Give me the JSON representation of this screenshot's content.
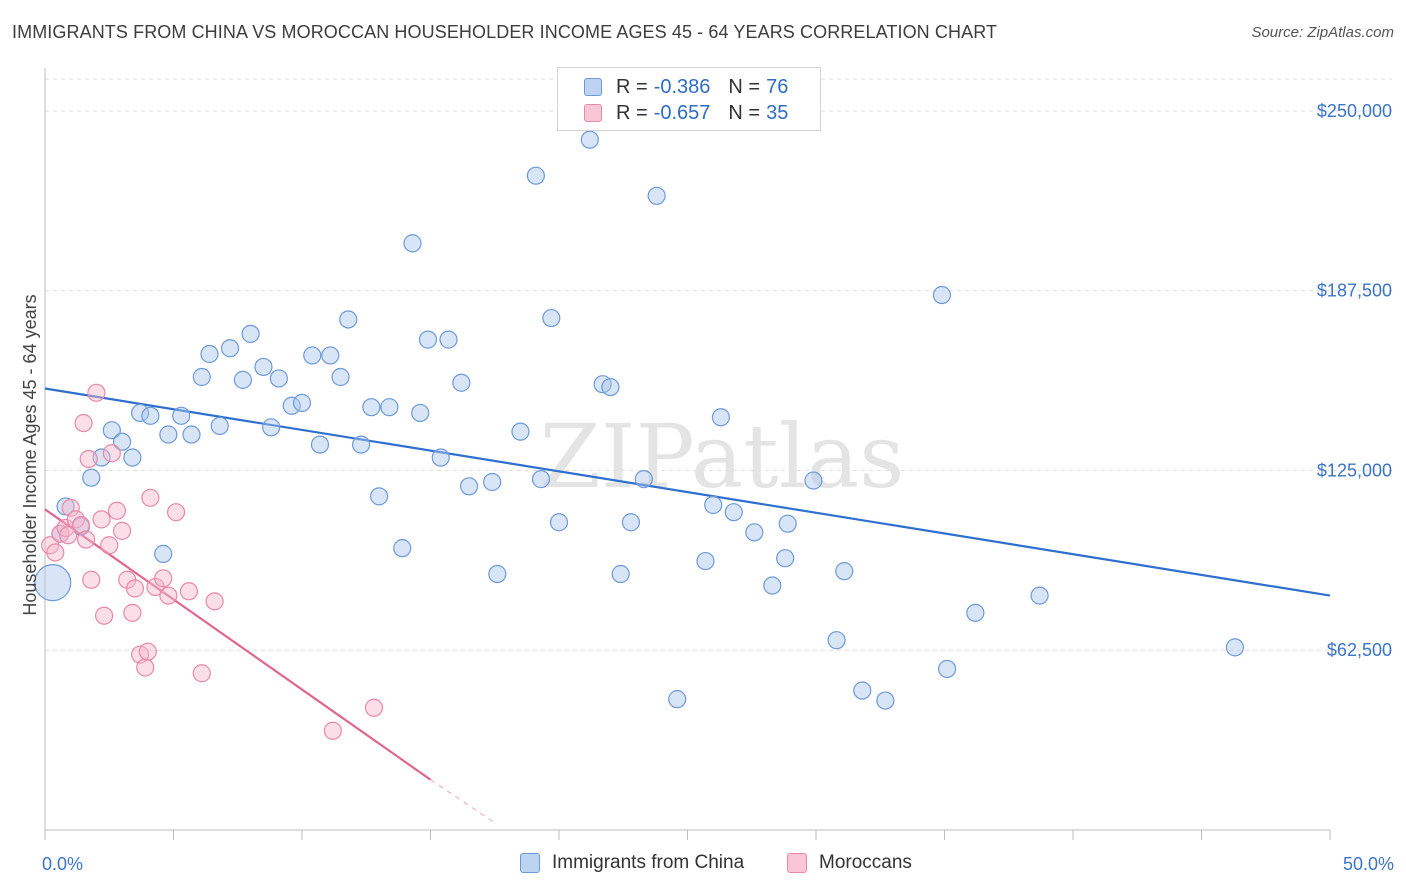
{
  "chart_data": {
    "type": "scatter",
    "title": "IMMIGRANTS FROM CHINA VS MOROCCAN HOUSEHOLDER INCOME AGES 45 - 64 YEARS CORRELATION CHART",
    "source": "Source: ZipAtlas.com",
    "ylabel": "Householder Income Ages 45 - 64 years",
    "xlabel": "",
    "xlim": [
      0,
      50
    ],
    "ylim": [
      0,
      262500
    ],
    "x_tick_labels": [
      "0.0%",
      "50.0%"
    ],
    "y_ticks": [
      {
        "value": 62500,
        "label": "$62,500"
      },
      {
        "value": 125000,
        "label": "$125,000"
      },
      {
        "value": 187500,
        "label": "$187,500"
      },
      {
        "value": 250000,
        "label": "$250,000"
      }
    ],
    "watermark": "ZIPatlas",
    "legend": {
      "china": {
        "r_label": "R =",
        "r_value": "-0.386",
        "n_label": "N =",
        "n_value": "76"
      },
      "moroccan": {
        "r_label": "R =",
        "r_value": "-0.657",
        "n_label": "N =",
        "n_value": "35"
      }
    },
    "colors": {
      "china_fill": "#a9c6ee",
      "china_stroke": "#6d9ad8",
      "china_line": "#2f6fcf",
      "moroccan_fill": "#f7b5ca",
      "moroccan_stroke": "#e889a8",
      "moroccan_line": "#e0688f",
      "tick_text": "#3b74c6"
    },
    "series": [
      {
        "name": "Immigrants from China",
        "trend": {
          "x0": 0,
          "y0": 153500,
          "x1": 50,
          "y1": 81500
        },
        "points": [
          {
            "x": 0.3,
            "y": 86000,
            "big": true
          },
          {
            "x": 0.8,
            "y": 112500
          },
          {
            "x": 1.8,
            "y": 122500
          },
          {
            "x": 2.2,
            "y": 129500
          },
          {
            "x": 2.6,
            "y": 139000
          },
          {
            "x": 3.0,
            "y": 135000
          },
          {
            "x": 3.4,
            "y": 129500
          },
          {
            "x": 3.7,
            "y": 145000
          },
          {
            "x": 4.1,
            "y": 144000
          },
          {
            "x": 4.6,
            "y": 96000
          },
          {
            "x": 4.8,
            "y": 137500
          },
          {
            "x": 5.3,
            "y": 144000
          },
          {
            "x": 5.7,
            "y": 137500
          },
          {
            "x": 6.1,
            "y": 157500
          },
          {
            "x": 6.4,
            "y": 165500
          },
          {
            "x": 6.8,
            "y": 140500
          },
          {
            "x": 7.2,
            "y": 167500
          },
          {
            "x": 7.7,
            "y": 156500
          },
          {
            "x": 8.0,
            "y": 172500
          },
          {
            "x": 8.5,
            "y": 161000
          },
          {
            "x": 8.8,
            "y": 140000
          },
          {
            "x": 9.1,
            "y": 157000
          },
          {
            "x": 9.6,
            "y": 147500
          },
          {
            "x": 10.0,
            "y": 148500
          },
          {
            "x": 10.4,
            "y": 165000
          },
          {
            "x": 10.7,
            "y": 134000
          },
          {
            "x": 11.1,
            "y": 165000
          },
          {
            "x": 11.5,
            "y": 157500
          },
          {
            "x": 11.8,
            "y": 177500
          },
          {
            "x": 12.3,
            "y": 134000
          },
          {
            "x": 12.7,
            "y": 147000
          },
          {
            "x": 13.0,
            "y": 116000
          },
          {
            "x": 13.4,
            "y": 147000
          },
          {
            "x": 13.9,
            "y": 98000
          },
          {
            "x": 14.3,
            "y": 204000
          },
          {
            "x": 14.6,
            "y": 145000
          },
          {
            "x": 14.9,
            "y": 170500
          },
          {
            "x": 15.4,
            "y": 129500
          },
          {
            "x": 15.7,
            "y": 170500
          },
          {
            "x": 16.2,
            "y": 155500
          },
          {
            "x": 16.5,
            "y": 119500
          },
          {
            "x": 17.4,
            "y": 121000
          },
          {
            "x": 17.6,
            "y": 89000
          },
          {
            "x": 18.5,
            "y": 138500
          },
          {
            "x": 19.1,
            "y": 227500
          },
          {
            "x": 19.3,
            "y": 122000
          },
          {
            "x": 19.7,
            "y": 178000
          },
          {
            "x": 20.0,
            "y": 107000
          },
          {
            "x": 21.2,
            "y": 240000
          },
          {
            "x": 21.7,
            "y": 155000
          },
          {
            "x": 22.0,
            "y": 154000
          },
          {
            "x": 22.4,
            "y": 89000
          },
          {
            "x": 22.8,
            "y": 107000
          },
          {
            "x": 23.3,
            "y": 122000
          },
          {
            "x": 23.8,
            "y": 220500
          },
          {
            "x": 24.6,
            "y": 45500
          },
          {
            "x": 25.7,
            "y": 93500
          },
          {
            "x": 26.0,
            "y": 113000
          },
          {
            "x": 26.3,
            "y": 143500
          },
          {
            "x": 26.8,
            "y": 110500
          },
          {
            "x": 27.6,
            "y": 103500
          },
          {
            "x": 28.3,
            "y": 85000
          },
          {
            "x": 28.8,
            "y": 94500
          },
          {
            "x": 28.9,
            "y": 106500
          },
          {
            "x": 29.9,
            "y": 121500
          },
          {
            "x": 30.8,
            "y": 66000
          },
          {
            "x": 31.1,
            "y": 90000
          },
          {
            "x": 31.8,
            "y": 48500
          },
          {
            "x": 32.7,
            "y": 45000
          },
          {
            "x": 34.9,
            "y": 186000
          },
          {
            "x": 35.1,
            "y": 56000
          },
          {
            "x": 36.2,
            "y": 75500
          },
          {
            "x": 38.7,
            "y": 81500
          },
          {
            "x": 46.3,
            "y": 63500
          },
          {
            "x": 0.6,
            "y": 103000
          },
          {
            "x": 1.4,
            "y": 105500
          }
        ]
      },
      {
        "name": "Moroccans",
        "trend": {
          "x0": 0,
          "y0": 111500,
          "x1": 15,
          "y1": 17500
        },
        "trend_dashed": {
          "x0": 15,
          "y0": 17500,
          "x1": 17.5,
          "y1": 2500
        },
        "points": [
          {
            "x": 0.2,
            "y": 99000
          },
          {
            "x": 0.4,
            "y": 96500
          },
          {
            "x": 0.6,
            "y": 103000
          },
          {
            "x": 0.8,
            "y": 105000
          },
          {
            "x": 1.0,
            "y": 112000
          },
          {
            "x": 1.2,
            "y": 108000
          },
          {
            "x": 1.4,
            "y": 106000
          },
          {
            "x": 1.6,
            "y": 101000
          },
          {
            "x": 1.8,
            "y": 87000
          },
          {
            "x": 1.5,
            "y": 141500
          },
          {
            "x": 1.7,
            "y": 129000
          },
          {
            "x": 2.0,
            "y": 152000
          },
          {
            "x": 2.2,
            "y": 108000
          },
          {
            "x": 2.3,
            "y": 74500
          },
          {
            "x": 2.5,
            "y": 99000
          },
          {
            "x": 2.6,
            "y": 131000
          },
          {
            "x": 2.8,
            "y": 111000
          },
          {
            "x": 3.0,
            "y": 104000
          },
          {
            "x": 3.2,
            "y": 87000
          },
          {
            "x": 3.4,
            "y": 75500
          },
          {
            "x": 3.5,
            "y": 84000
          },
          {
            "x": 3.7,
            "y": 61000
          },
          {
            "x": 3.9,
            "y": 56500
          },
          {
            "x": 4.0,
            "y": 62000
          },
          {
            "x": 4.1,
            "y": 115500
          },
          {
            "x": 4.3,
            "y": 84500
          },
          {
            "x": 4.6,
            "y": 87500
          },
          {
            "x": 4.8,
            "y": 81500
          },
          {
            "x": 5.1,
            "y": 110500
          },
          {
            "x": 5.6,
            "y": 83000
          },
          {
            "x": 6.1,
            "y": 54500
          },
          {
            "x": 6.6,
            "y": 79500
          },
          {
            "x": 11.2,
            "y": 34500
          },
          {
            "x": 12.8,
            "y": 42500
          },
          {
            "x": 0.9,
            "y": 102500
          }
        ]
      }
    ],
    "bottom_legend": [
      "Immigrants from China",
      "Moroccans"
    ]
  }
}
